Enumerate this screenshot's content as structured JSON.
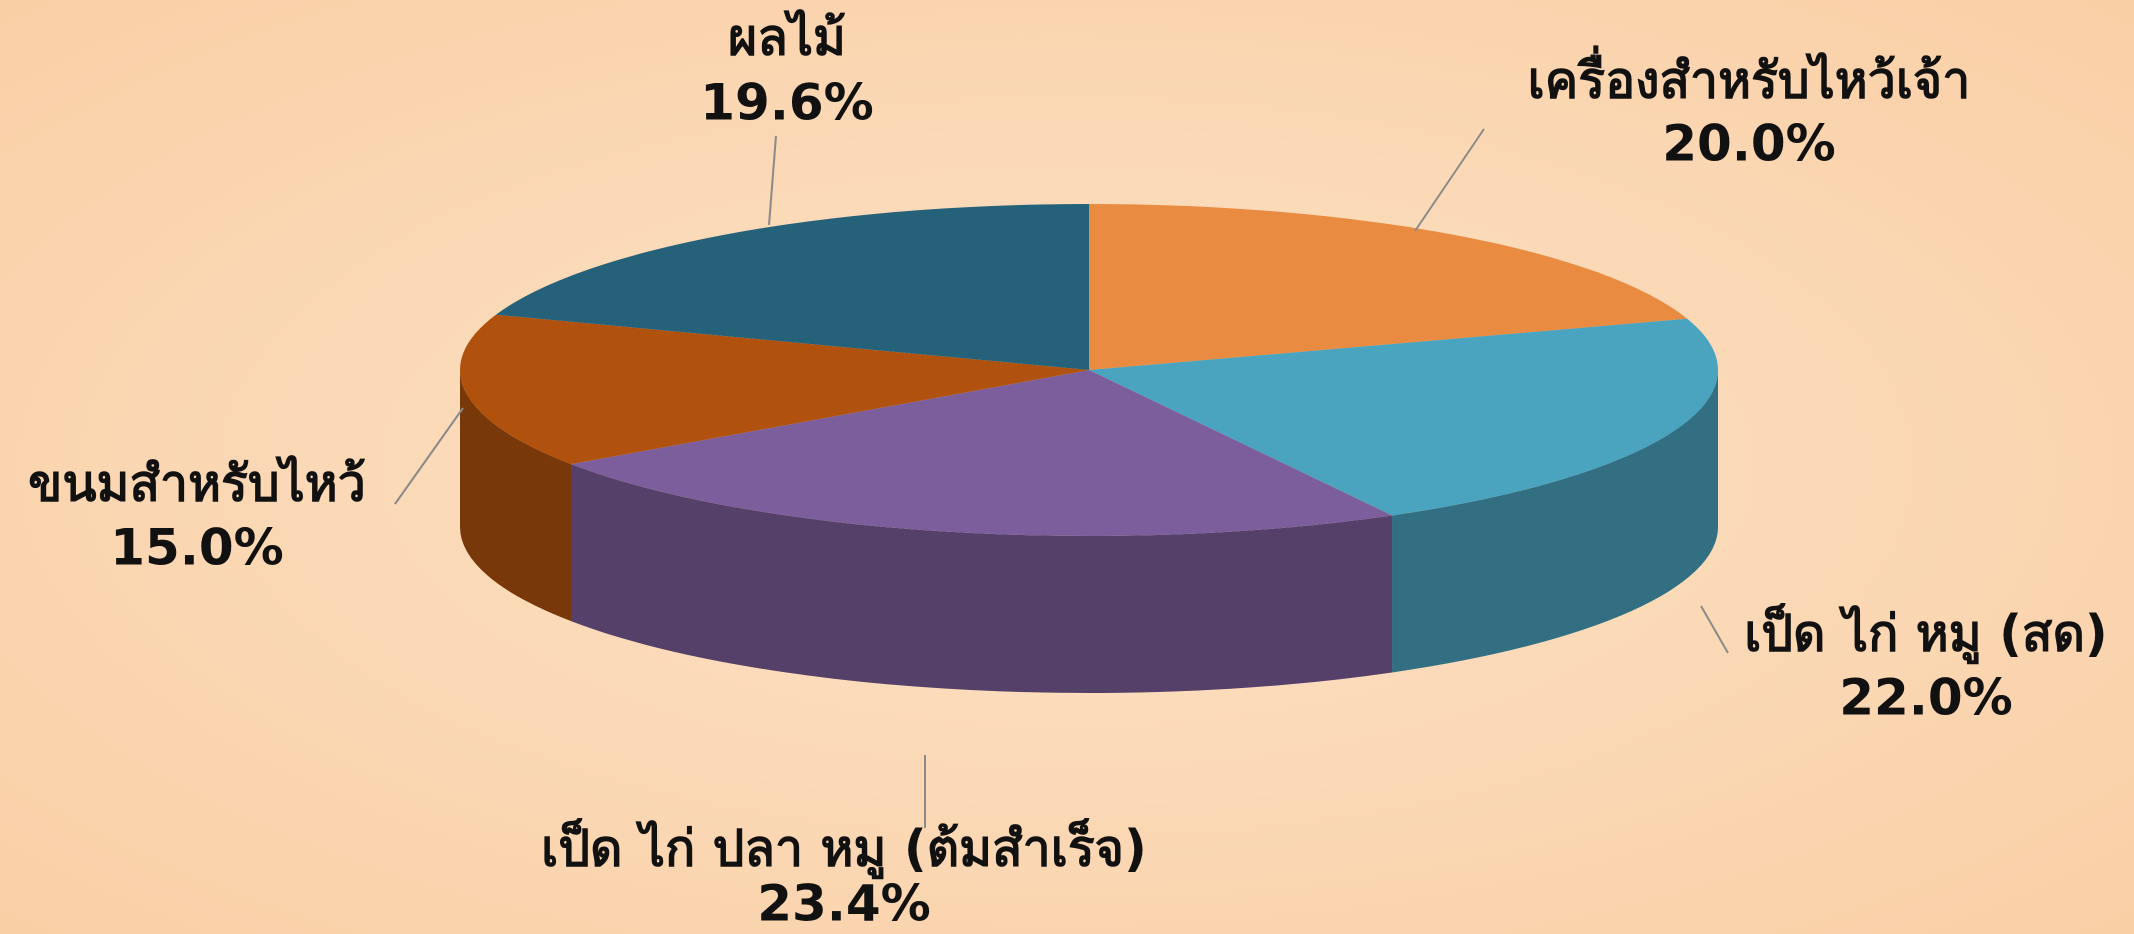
{
  "chart_data": {
    "type": "pie3d",
    "categories": [
      "เครื่องสำหรับไหว้เจ้า",
      "เป็ด ไก่ หมู (สด)",
      "เป็ด ไก่ ปลา หมู (ต้มสำเร็จ)",
      "ขนมสำหรับไหว้",
      "ผลไม้"
    ],
    "values": [
      20.0,
      22.0,
      23.4,
      15.0,
      19.6
    ],
    "value_labels": [
      "20.0%",
      "22.0%",
      "23.4%",
      "15.0%",
      "19.6%"
    ],
    "colors": [
      "#e98c42",
      "#4aa3bf",
      "#7b5e9b",
      "#b0520e",
      "#25627a"
    ]
  }
}
